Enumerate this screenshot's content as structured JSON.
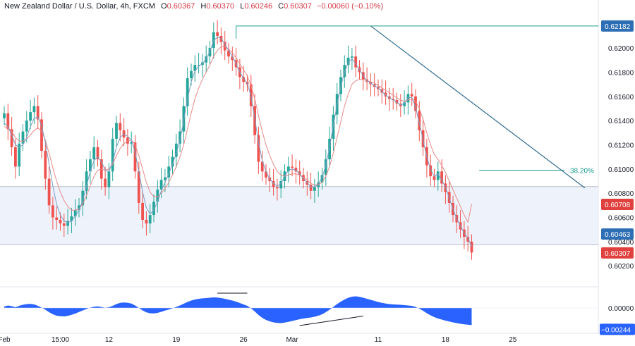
{
  "header": {
    "symbol": "New Zealand Dollar / U.S. Dollar, 4h, FXCM",
    "open_key": "O",
    "open": "0.60367",
    "high_key": "H",
    "high": "0.60370",
    "low_key": "L",
    "low": "0.60246",
    "close_key": "C",
    "close": "0.60307",
    "change": "−0.00060 (−0.10%)"
  },
  "colors": {
    "up": "#26a69a",
    "down": "#ef5350",
    "ma_fast": "#7b9cc4",
    "ma_slow": "#e78a8a",
    "trendline": "#2f6a8f",
    "fib": "#1a9b8f",
    "zone": "#eef3fb",
    "oscillator": "#2962ff",
    "badge_price": "#2e6eb5",
    "badge_ma": "#e0403e"
  },
  "chart_data": {
    "type": "candlestick",
    "price_axis": {
      "ticks": [
        "0.62000",
        "0.61800",
        "0.61600",
        "0.61400",
        "0.61200",
        "0.61000",
        "0.60800",
        "0.60600",
        "0.60400",
        "0.60200"
      ],
      "tick_values": [
        0.62,
        0.618,
        0.616,
        0.614,
        0.612,
        0.61,
        0.608,
        0.606,
        0.604,
        0.602
      ],
      "range": [
        0.6005,
        0.6228
      ]
    },
    "time_axis": {
      "labels": [
        "Feb",
        "15:00",
        "12",
        "19",
        "26",
        "Mar",
        "11",
        "18",
        "25"
      ],
      "label_index": [
        0,
        15,
        28,
        46,
        64,
        77,
        100,
        118,
        136
      ]
    },
    "price_labels": [
      {
        "text": "0.62182",
        "value": 0.62182,
        "kind": "resistance"
      },
      {
        "text": "0.60708",
        "value": 0.60708,
        "kind": "ma"
      },
      {
        "text": "0.60463",
        "value": 0.60463,
        "kind": "support"
      },
      {
        "text": "0.60307",
        "value": 0.60307,
        "kind": "last"
      }
    ],
    "fib_label": "38.20%",
    "fib_level": 0.6099,
    "zone": [
      0.60375,
      0.60855
    ],
    "resistance_level": 0.62182,
    "trendline": {
      "from_index": 98,
      "from_value": 0.62182,
      "to_index": 143,
      "to_value": 0.60855
    },
    "close": [
      0.6146,
      0.6133,
      0.6118,
      0.6102,
      0.6121,
      0.6131,
      0.614,
      0.6147,
      0.6152,
      0.6141,
      0.6115,
      0.6092,
      0.607,
      0.606,
      0.6058,
      0.6055,
      0.6053,
      0.6057,
      0.6061,
      0.6066,
      0.607,
      0.6082,
      0.6098,
      0.6108,
      0.6118,
      0.6108,
      0.6092,
      0.6085,
      0.6098,
      0.6125,
      0.6138,
      0.6132,
      0.6126,
      0.6121,
      0.6122,
      0.6098,
      0.6072,
      0.6058,
      0.6055,
      0.6062,
      0.6073,
      0.6083,
      0.6091,
      0.6093,
      0.6102,
      0.611,
      0.6121,
      0.6131,
      0.6152,
      0.6175,
      0.6181,
      0.6186,
      0.6186,
      0.6188,
      0.6193,
      0.62,
      0.6213,
      0.621,
      0.6205,
      0.6198,
      0.6193,
      0.619,
      0.6184,
      0.6176,
      0.6172,
      0.617,
      0.6152,
      0.6128,
      0.6106,
      0.6098,
      0.6093,
      0.609,
      0.6085,
      0.6084,
      0.609,
      0.6098,
      0.6102,
      0.6101,
      0.6098,
      0.6095,
      0.609,
      0.6087,
      0.6082,
      0.6085,
      0.6089,
      0.6095,
      0.6108,
      0.6125,
      0.6145,
      0.6162,
      0.6176,
      0.6186,
      0.6192,
      0.6193,
      0.6184,
      0.618,
      0.6174,
      0.6172,
      0.617,
      0.6168,
      0.6166,
      0.6163,
      0.616,
      0.6158,
      0.6157,
      0.6154,
      0.6152,
      0.6155,
      0.6162,
      0.616,
      0.6148,
      0.6132,
      0.6118,
      0.6103,
      0.6094,
      0.6091,
      0.6098,
      0.6088,
      0.6081,
      0.6072,
      0.6062,
      0.6056,
      0.605,
      0.6044,
      0.604,
      0.6031
    ],
    "ma_fast": [
      0.6138,
      0.6135,
      0.6128,
      0.612,
      0.6118,
      0.612,
      0.6126,
      0.6135,
      0.6142,
      0.6143,
      0.6136,
      0.6122,
      0.6104,
      0.6086,
      0.6071,
      0.6062,
      0.6057,
      0.6056,
      0.6057,
      0.6061,
      0.6066,
      0.6074,
      0.6086,
      0.6098,
      0.6107,
      0.611,
      0.6106,
      0.6099,
      0.6098,
      0.6106,
      0.6118,
      0.6126,
      0.6129,
      0.6127,
      0.6124,
      0.6114,
      0.6098,
      0.6081,
      0.6068,
      0.6063,
      0.6066,
      0.6073,
      0.6082,
      0.6089,
      0.6096,
      0.6104,
      0.6113,
      0.6124,
      0.614,
      0.6158,
      0.6172,
      0.6181,
      0.6185,
      0.6187,
      0.6191,
      0.6197,
      0.6206,
      0.6209,
      0.6208,
      0.6203,
      0.6198,
      0.6193,
      0.6187,
      0.618,
      0.6175,
      0.6171,
      0.616,
      0.6142,
      0.6122,
      0.6107,
      0.6098,
      0.6092,
      0.6088,
      0.6086,
      0.6088,
      0.6094,
      0.6099,
      0.61,
      0.6099,
      0.6096,
      0.6092,
      0.6089,
      0.6085,
      0.6085,
      0.6088,
      0.6093,
      0.6103,
      0.6118,
      0.6136,
      0.6153,
      0.6168,
      0.618,
      0.6188,
      0.6191,
      0.6187,
      0.6182,
      0.6177,
      0.6173,
      0.6171,
      0.6169,
      0.6167,
      0.6164,
      0.6161,
      0.6159,
      0.6157,
      0.6155,
      0.6153,
      0.6154,
      0.6159,
      0.6159,
      0.6151,
      0.6138,
      0.6124,
      0.611,
      0.61,
      0.6094,
      0.6096,
      0.6091,
      0.6085,
      0.6076,
      0.6067,
      0.6059,
      0.6053,
      0.6047,
      0.6043,
      0.6036
    ],
    "ma_slow": [
      0.6135,
      0.6134,
      0.6131,
      0.6126,
      0.6123,
      0.6123,
      0.6125,
      0.6128,
      0.6132,
      0.6134,
      0.6131,
      0.6124,
      0.6113,
      0.6101,
      0.609,
      0.6081,
      0.6074,
      0.6069,
      0.6066,
      0.6066,
      0.6067,
      0.6071,
      0.6078,
      0.6086,
      0.6094,
      0.6099,
      0.61,
      0.6099,
      0.61,
      0.6104,
      0.6111,
      0.6117,
      0.6121,
      0.6123,
      0.6124,
      0.612,
      0.6111,
      0.61,
      0.6089,
      0.6081,
      0.6077,
      0.6077,
      0.608,
      0.6084,
      0.6089,
      0.6095,
      0.6102,
      0.611,
      0.612,
      0.6133,
      0.6146,
      0.6158,
      0.6167,
      0.6174,
      0.618,
      0.6186,
      0.6193,
      0.6198,
      0.6201,
      0.6201,
      0.6199,
      0.6196,
      0.6192,
      0.6187,
      0.6182,
      0.6177,
      0.6169,
      0.6158,
      0.6144,
      0.6131,
      0.612,
      0.6111,
      0.6104,
      0.6098,
      0.6095,
      0.6094,
      0.6095,
      0.6096,
      0.6096,
      0.6095,
      0.6093,
      0.6091,
      0.6088,
      0.6087,
      0.6087,
      0.6089,
      0.6094,
      0.6102,
      0.6113,
      0.6126,
      0.6139,
      0.6152,
      0.6162,
      0.617,
      0.6173,
      0.6174,
      0.6174,
      0.6173,
      0.6172,
      0.6171,
      0.6169,
      0.6167,
      0.6165,
      0.6163,
      0.6161,
      0.6159,
      0.6157,
      0.6156,
      0.6157,
      0.6158,
      0.6156,
      0.615,
      0.6141,
      0.613,
      0.612,
      0.6112,
      0.6108,
      0.6103,
      0.6097,
      0.609,
      0.6083,
      0.6076,
      0.6069,
      0.6062,
      0.6056,
      0.6071
    ],
    "oscillator_axis": {
      "ticks": [
        "0.00000"
      ],
      "tick_values": [
        0
      ]
    },
    "oscillator_label": "−0.00244",
    "oscillator_value": -0.00244,
    "oscillator": [
      0.0002,
      0.00035,
      0.00025,
      0.0001,
      0.0003,
      0.00045,
      0.00055,
      0.00058,
      0.0005,
      0.0003,
      5e-05,
      -0.00025,
      -0.0006,
      -0.0009,
      -0.0011,
      -0.00118,
      -0.0012,
      -0.00112,
      -0.00098,
      -0.0008,
      -0.00058,
      -0.00035,
      -0.00015,
      5e-05,
      0.00018,
      0.00022,
      0.00012,
      2e-05,
      0.0001,
      0.0003,
      0.00055,
      0.00072,
      0.00078,
      0.00074,
      0.00062,
      0.00035,
      0.0,
      -0.00035,
      -0.00062,
      -0.00075,
      -0.00078,
      -0.0007,
      -0.00055,
      -0.00038,
      -0.00022,
      -5e-05,
      0.00015,
      0.00035,
      0.0006,
      0.00085,
      0.00105,
      0.0012,
      0.0013,
      0.00136,
      0.0014,
      0.00145,
      0.0015,
      0.00148,
      0.0014,
      0.0013,
      0.00118,
      0.00105,
      0.0009,
      0.0007,
      0.0005,
      0.0003,
      -5e-05,
      -0.0005,
      -0.001,
      -0.0014,
      -0.0017,
      -0.0019,
      -0.00205,
      -0.00212,
      -0.00215,
      -0.00208,
      -0.00198,
      -0.00185,
      -0.00172,
      -0.0016,
      -0.0015,
      -0.00142,
      -0.00135,
      -0.00125,
      -0.0011,
      -0.0009,
      -0.0006,
      -0.00025,
      0.00015,
      0.00055,
      0.0009,
      0.0012,
      0.00145,
      0.0016,
      0.00165,
      0.00158,
      0.00145,
      0.0013,
      0.00115,
      0.001,
      0.00085,
      0.00072,
      0.00062,
      0.00055,
      0.0005,
      0.00048,
      0.00045,
      0.0004,
      0.00035,
      0.0003,
      0.00015,
      -0.0001,
      -0.0004,
      -0.00075,
      -0.00105,
      -0.0013,
      -0.0015,
      -0.00165,
      -0.0018,
      -0.00192,
      -0.00205,
      -0.00215,
      -0.00225,
      -0.00232,
      -0.00238,
      -0.00244
    ]
  }
}
